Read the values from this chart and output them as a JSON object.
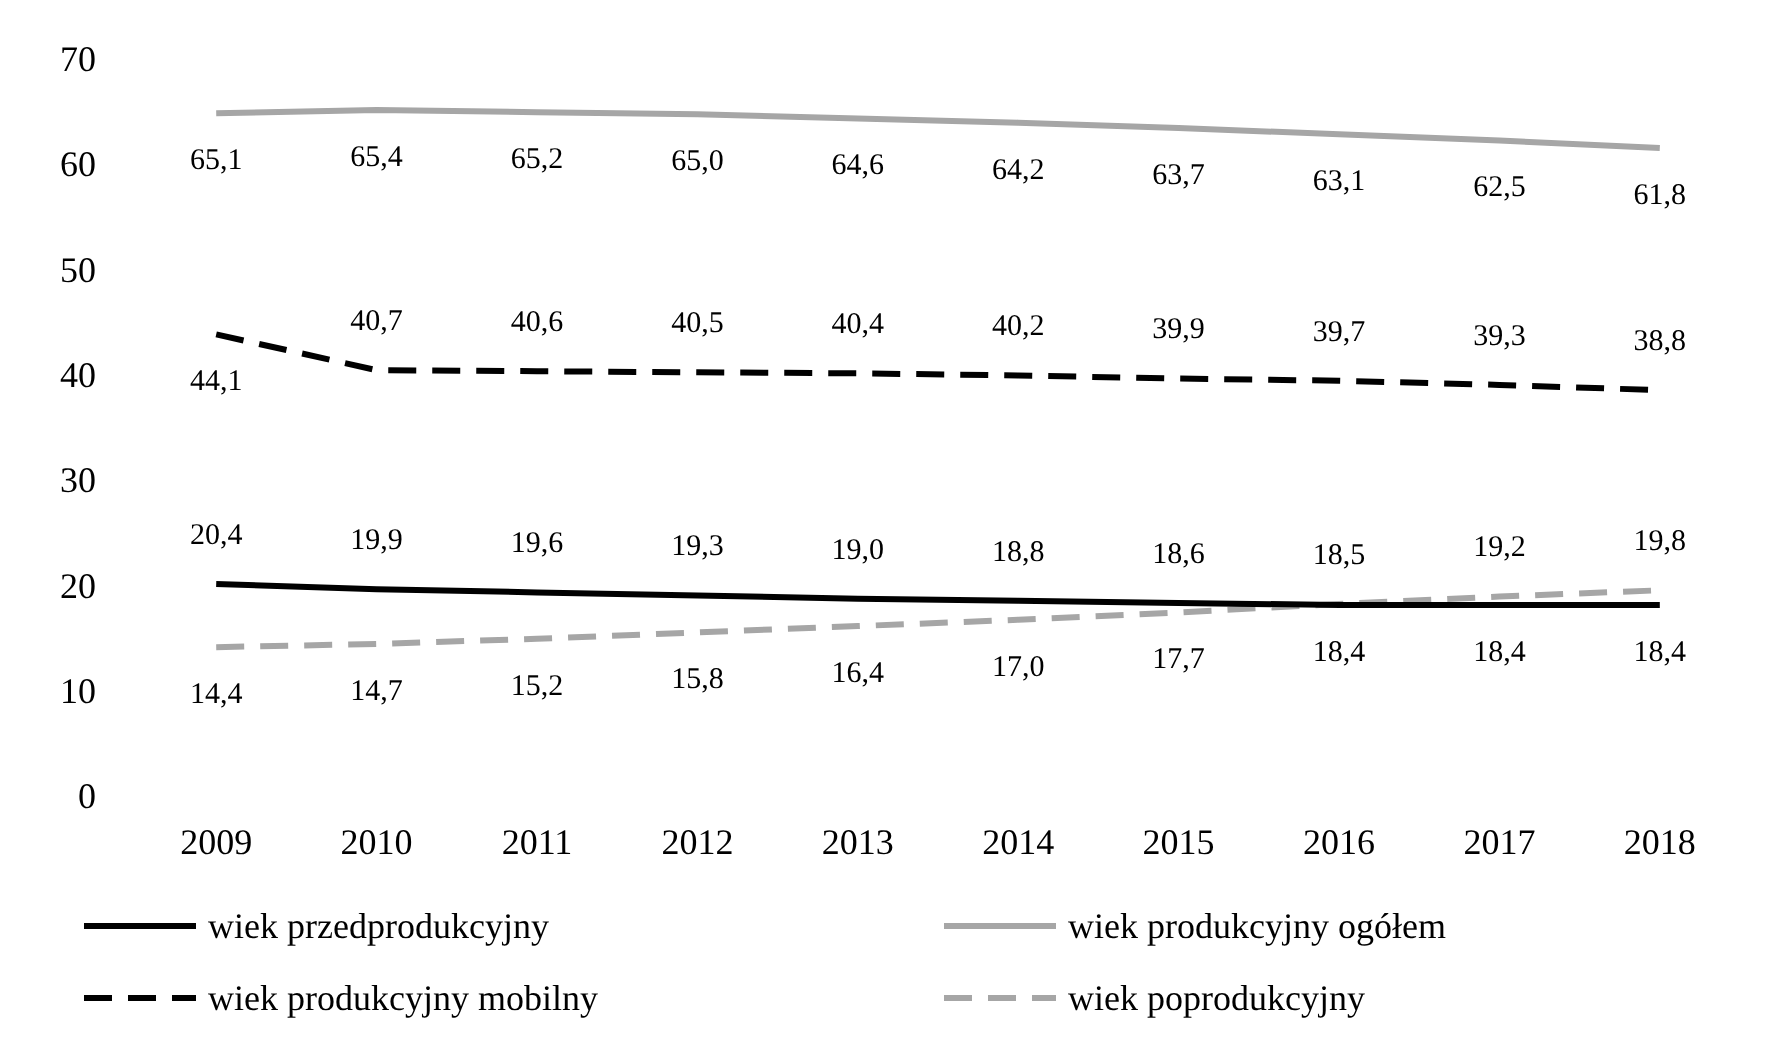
{
  "chart_data": {
    "type": "line",
    "categories": [
      "2009",
      "2010",
      "2011",
      "2012",
      "2013",
      "2014",
      "2015",
      "2016",
      "2017",
      "2018"
    ],
    "series": [
      {
        "name": "wiek przedprodukcyjny",
        "color": "#000000",
        "line_style": "solid",
        "values": [
          20.4,
          19.9,
          19.6,
          19.3,
          19.0,
          18.8,
          18.6,
          18.4,
          18.4,
          18.4
        ],
        "value_labels": [
          "20,4",
          "19,9",
          "19,6",
          "19,3",
          "19,0",
          "18,8",
          "18,6",
          "18,4",
          "18,4",
          "18,4"
        ]
      },
      {
        "name": "wiek produkcyjny ogółem",
        "color": "#a6a6a6",
        "line_style": "solid",
        "values": [
          65.1,
          65.4,
          65.2,
          65.0,
          64.6,
          64.2,
          63.7,
          63.1,
          62.5,
          61.8
        ],
        "value_labels": [
          "65,1",
          "65,4",
          "65,2",
          "65,0",
          "64,6",
          "64,2",
          "63,7",
          "63,1",
          "62,5",
          "61,8"
        ]
      },
      {
        "name": "wiek produkcyjny mobilny",
        "color": "#000000",
        "line_style": "dashed",
        "values": [
          44.1,
          40.7,
          40.6,
          40.5,
          40.4,
          40.2,
          39.9,
          39.7,
          39.3,
          38.8
        ],
        "value_labels": [
          "44,1",
          "40,7",
          "40,6",
          "40,5",
          "40,4",
          "40,2",
          "39,9",
          "39,7",
          "39,3",
          "38,8"
        ]
      },
      {
        "name": "wiek poprodukcyjny",
        "color": "#a6a6a6",
        "line_style": "dashed",
        "values": [
          14.4,
          14.7,
          15.2,
          15.8,
          16.4,
          17.0,
          17.7,
          18.5,
          19.2,
          19.8
        ],
        "value_labels": [
          "14,4",
          "14,7",
          "15,2",
          "15,8",
          "16,4",
          "17,0",
          "17,7",
          "18,5",
          "19,2",
          "19,8"
        ]
      }
    ],
    "ylim": [
      0,
      70
    ],
    "yticks": [
      0,
      10,
      20,
      30,
      40,
      50,
      60,
      70
    ],
    "grid": false,
    "legend": "bottom",
    "marker": "none"
  }
}
